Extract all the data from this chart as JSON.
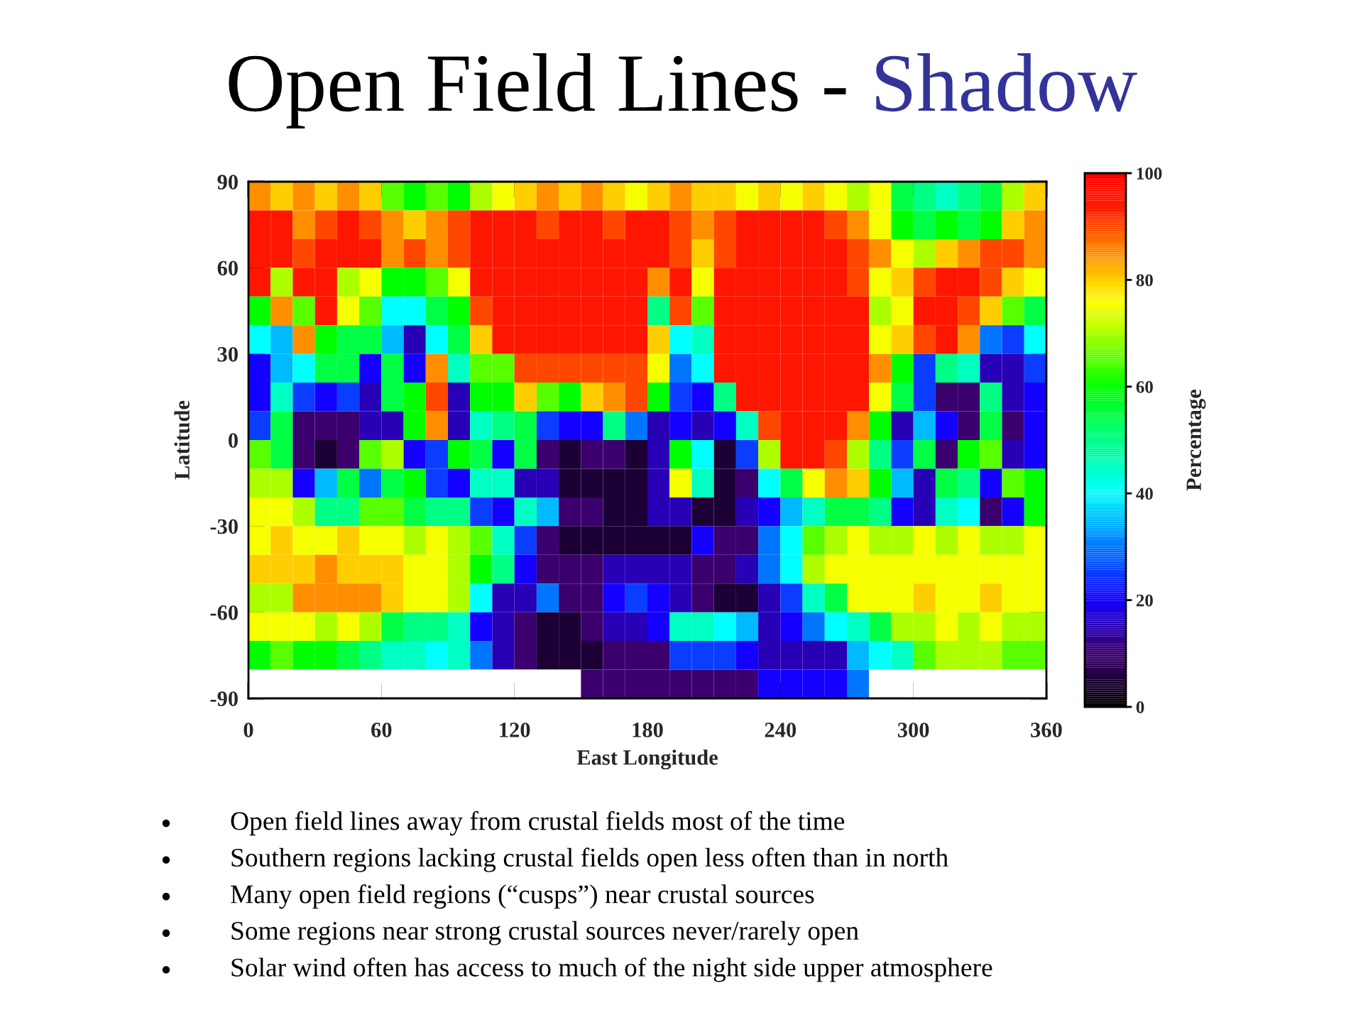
{
  "chart_data": {
    "type": "heatmap",
    "title": "Open Field Lines - Shadow",
    "xlabel": "East Longitude",
    "ylabel": "Latitude",
    "clabel": "Percentage",
    "xlim": [
      0,
      360
    ],
    "xticks": [
      0,
      60,
      120,
      180,
      240,
      300,
      360
    ],
    "ylim": [
      -90,
      90
    ],
    "yticks": [
      -90,
      -60,
      -30,
      0,
      30,
      60,
      90
    ],
    "clim": [
      0,
      100
    ],
    "cticks": [
      0,
      20,
      40,
      60,
      80,
      100
    ],
    "cells": [
      [
        85,
        80,
        85,
        80,
        85,
        80,
        65,
        60,
        65,
        60,
        70,
        75,
        80,
        85,
        80,
        85,
        80,
        75,
        80,
        85,
        80,
        80,
        75,
        80,
        75,
        80,
        75,
        70,
        75,
        55,
        50,
        45,
        50,
        55,
        70,
        80
      ],
      [
        95,
        95,
        85,
        90,
        95,
        90,
        85,
        80,
        85,
        90,
        95,
        95,
        95,
        90,
        95,
        95,
        90,
        95,
        95,
        90,
        85,
        90,
        95,
        95,
        95,
        95,
        90,
        85,
        75,
        60,
        55,
        60,
        55,
        60,
        80,
        85
      ],
      [
        95,
        95,
        90,
        95,
        95,
        95,
        85,
        90,
        85,
        90,
        95,
        95,
        95,
        95,
        95,
        95,
        95,
        95,
        95,
        90,
        80,
        90,
        95,
        95,
        95,
        95,
        95,
        90,
        85,
        75,
        70,
        80,
        85,
        90,
        90,
        85
      ],
      [
        95,
        70,
        95,
        95,
        70,
        75,
        60,
        60,
        65,
        75,
        95,
        95,
        95,
        95,
        95,
        95,
        95,
        95,
        85,
        95,
        75,
        95,
        95,
        95,
        95,
        95,
        95,
        90,
        75,
        80,
        90,
        95,
        95,
        90,
        80,
        75
      ],
      [
        60,
        85,
        65,
        95,
        75,
        65,
        40,
        40,
        55,
        60,
        90,
        95,
        95,
        95,
        95,
        95,
        95,
        95,
        50,
        90,
        65,
        95,
        95,
        95,
        95,
        95,
        95,
        95,
        70,
        75,
        95,
        95,
        90,
        80,
        65,
        55
      ],
      [
        40,
        35,
        85,
        60,
        55,
        55,
        35,
        15,
        40,
        55,
        80,
        95,
        95,
        95,
        95,
        95,
        95,
        95,
        80,
        40,
        45,
        95,
        95,
        95,
        95,
        95,
        95,
        95,
        75,
        80,
        90,
        95,
        85,
        30,
        25,
        40
      ],
      [
        20,
        35,
        40,
        55,
        55,
        20,
        55,
        20,
        85,
        45,
        65,
        65,
        90,
        90,
        90,
        90,
        90,
        90,
        75,
        30,
        40,
        95,
        95,
        95,
        95,
        95,
        95,
        95,
        85,
        60,
        25,
        50,
        45,
        15,
        15,
        25
      ],
      [
        20,
        45,
        25,
        20,
        25,
        15,
        55,
        60,
        90,
        15,
        60,
        60,
        80,
        65,
        60,
        80,
        85,
        90,
        60,
        25,
        20,
        50,
        95,
        95,
        95,
        95,
        95,
        95,
        75,
        55,
        25,
        10,
        10,
        50,
        15,
        20
      ],
      [
        25,
        55,
        10,
        10,
        10,
        15,
        15,
        60,
        85,
        15,
        45,
        50,
        55,
        25,
        20,
        20,
        50,
        30,
        15,
        20,
        15,
        20,
        45,
        90,
        95,
        95,
        95,
        85,
        60,
        15,
        35,
        20,
        10,
        55,
        10,
        20
      ],
      [
        65,
        55,
        10,
        5,
        10,
        65,
        70,
        20,
        25,
        60,
        55,
        20,
        55,
        10,
        5,
        10,
        10,
        5,
        15,
        60,
        40,
        5,
        25,
        70,
        95,
        95,
        90,
        70,
        50,
        25,
        55,
        10,
        60,
        65,
        15,
        20
      ],
      [
        70,
        70,
        20,
        35,
        55,
        30,
        55,
        60,
        25,
        20,
        45,
        45,
        15,
        15,
        5,
        5,
        5,
        5,
        15,
        75,
        45,
        5,
        10,
        40,
        55,
        75,
        85,
        80,
        60,
        35,
        15,
        55,
        50,
        20,
        65,
        60
      ],
      [
        75,
        75,
        70,
        50,
        50,
        65,
        65,
        55,
        50,
        50,
        25,
        20,
        45,
        35,
        10,
        10,
        5,
        5,
        15,
        15,
        5,
        5,
        15,
        20,
        35,
        45,
        55,
        55,
        50,
        20,
        15,
        45,
        40,
        10,
        20,
        60
      ],
      [
        75,
        80,
        75,
        75,
        80,
        75,
        75,
        70,
        75,
        70,
        65,
        45,
        25,
        10,
        5,
        5,
        5,
        5,
        5,
        5,
        20,
        10,
        10,
        30,
        40,
        65,
        70,
        75,
        70,
        70,
        75,
        70,
        75,
        70,
        70,
        75
      ],
      [
        80,
        80,
        80,
        85,
        80,
        80,
        80,
        75,
        75,
        70,
        60,
        50,
        20,
        10,
        10,
        10,
        15,
        15,
        15,
        15,
        10,
        10,
        15,
        30,
        40,
        70,
        75,
        75,
        75,
        75,
        75,
        75,
        75,
        75,
        75,
        75
      ],
      [
        70,
        70,
        85,
        85,
        85,
        85,
        80,
        75,
        75,
        70,
        40,
        15,
        15,
        30,
        10,
        10,
        20,
        25,
        20,
        15,
        10,
        5,
        5,
        15,
        25,
        45,
        55,
        75,
        75,
        75,
        80,
        75,
        75,
        80,
        75,
        75
      ],
      [
        75,
        75,
        75,
        70,
        75,
        70,
        55,
        50,
        50,
        45,
        20,
        15,
        10,
        5,
        5,
        10,
        15,
        15,
        20,
        45,
        45,
        40,
        35,
        15,
        20,
        30,
        40,
        45,
        55,
        70,
        70,
        75,
        70,
        75,
        70,
        70
      ],
      [
        60,
        65,
        60,
        60,
        55,
        50,
        45,
        45,
        40,
        45,
        30,
        15,
        10,
        5,
        5,
        5,
        10,
        10,
        10,
        25,
        25,
        25,
        20,
        15,
        15,
        15,
        15,
        35,
        40,
        45,
        65,
        70,
        70,
        70,
        65,
        65
      ],
      [
        null,
        null,
        null,
        null,
        null,
        null,
        null,
        null,
        null,
        null,
        null,
        null,
        null,
        null,
        null,
        10,
        10,
        10,
        10,
        10,
        10,
        10,
        10,
        20,
        20,
        20,
        20,
        30,
        null,
        null,
        null,
        null,
        null,
        null,
        null,
        null
      ]
    ],
    "annotations": [
      "Open field lines away from crustal fields most of the time",
      "Southern regions lacking crustal fields open less often than in north",
      "Many open field regions (“cusps”) near crustal sources",
      "Some regions near strong crustal sources never/rarely open",
      "Solar wind often has access to much of the night side upper atmosphere"
    ]
  }
}
